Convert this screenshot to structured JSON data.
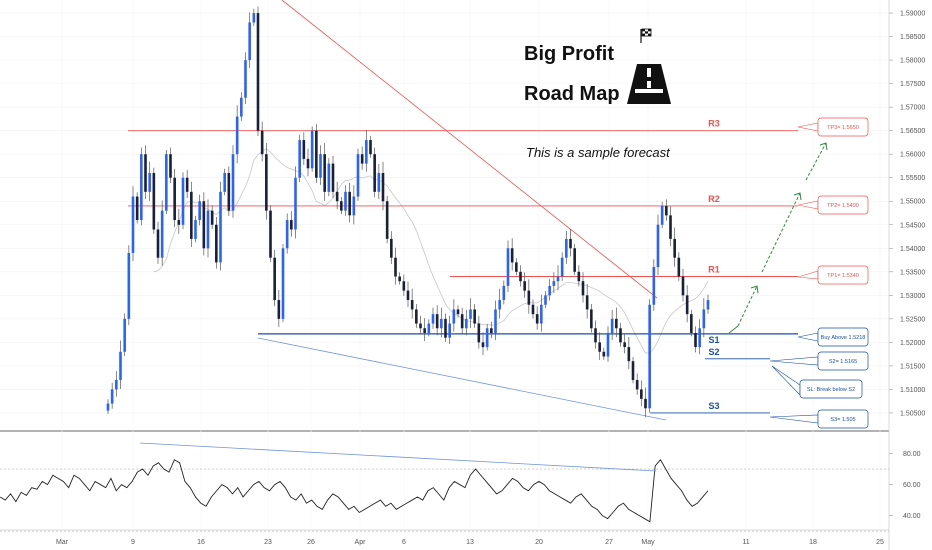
{
  "header": {
    "title_line1": "Big Profit",
    "title_line2": "Road Map",
    "subtitle": "This is a sample forecast",
    "flag_icon": "checkered-flag-icon",
    "road_icon": "road-icon"
  },
  "colors": {
    "up": "#2962ff",
    "down": "#ef5350",
    "candle_body": "#1a1f3a",
    "resistance": "#ef5350",
    "support": "#1a4fa8",
    "projection": "#2e8b3a",
    "ma": "#c8c8c8",
    "oscillator": "#222222"
  },
  "chart_data": {
    "type": "candlestick",
    "price_axis": {
      "ticks": [
        "1.59000",
        "1.58500",
        "1.58000",
        "1.57500",
        "1.57000",
        "1.56500",
        "1.56000",
        "1.55500",
        "1.55000",
        "1.54500",
        "1.54000",
        "1.53500",
        "1.53000",
        "1.52500",
        "1.52000",
        "1.51500",
        "1.51000",
        "1.50500"
      ],
      "ylim": [
        1.5035,
        1.5915
      ]
    },
    "oscillator_axis": {
      "ticks": [
        "80.00",
        "60.00",
        "40.00"
      ],
      "ylim": [
        32,
        90
      ],
      "bands": [
        70,
        30
      ]
    },
    "x_ticks": [
      "Mar",
      "9",
      "16",
      "23",
      "26",
      "Apr",
      "6",
      "13",
      "20",
      "27",
      "May",
      "11",
      "18",
      "25"
    ],
    "levels": [
      {
        "name": "R3",
        "price": 1.565,
        "color": "resistance",
        "box": "TP3= 1.5650"
      },
      {
        "name": "R2",
        "price": 1.549,
        "color": "resistance",
        "box": "TP2= 1.5490"
      },
      {
        "name": "R1",
        "price": 1.534,
        "color": "resistance",
        "box": "TP1= 1.5340"
      },
      {
        "name": "S1",
        "price": 1.5218,
        "color": "support",
        "box": "Buy Above 1.5218"
      },
      {
        "name": "S2",
        "price": 1.5165,
        "color": "support",
        "box": "S2= 1.5165"
      },
      {
        "name": "S3",
        "price": 1.505,
        "color": "support",
        "box": "S3= 1.505"
      }
    ],
    "annotation_sl": "SL: Break below S2",
    "candles_price_path": [
      1.507,
      1.51,
      1.512,
      1.518,
      1.525,
      1.539,
      1.551,
      1.546,
      1.56,
      1.552,
      1.556,
      1.544,
      1.538,
      1.548,
      1.56,
      1.555,
      1.546,
      1.545,
      1.555,
      1.552,
      1.542,
      1.546,
      1.55,
      1.54,
      1.548,
      1.545,
      1.537,
      1.552,
      1.556,
      1.548,
      1.56,
      1.568,
      1.572,
      1.58,
      1.588,
      1.59,
      1.565,
      1.56,
      1.548,
      1.538,
      1.529,
      1.525,
      1.54,
      1.546,
      1.544,
      1.555,
      1.563,
      1.559,
      1.557,
      1.565,
      1.555,
      1.56,
      1.552,
      1.558,
      1.552,
      1.55,
      1.548,
      1.552,
      1.547,
      1.551,
      1.56,
      1.558,
      1.563,
      1.56,
      1.552,
      1.556,
      1.55,
      1.542,
      1.538,
      1.534,
      1.533,
      1.531,
      1.529,
      1.527,
      1.524,
      1.523,
      1.522,
      1.524,
      1.526,
      1.523,
      1.525,
      1.521,
      1.524,
      1.527,
      1.526,
      1.523,
      1.525,
      1.527,
      1.524,
      1.52,
      1.519,
      1.523,
      1.522,
      1.527,
      1.529,
      1.532,
      1.54,
      1.537,
      1.535,
      1.533,
      1.531,
      1.528,
      1.526,
      1.524,
      1.528,
      1.53,
      1.532,
      1.533,
      1.534,
      1.538,
      1.542,
      1.54,
      1.535,
      1.533,
      1.53,
      1.527,
      1.523,
      1.52,
      1.518,
      1.517,
      1.522,
      1.525,
      1.523,
      1.52,
      1.519,
      1.516,
      1.512,
      1.51,
      1.508,
      1.506,
      1.528,
      1.536,
      1.545,
      1.549,
      1.547,
      1.542,
      1.538,
      1.534,
      1.53,
      1.526,
      1.522,
      1.519,
      1.523,
      1.527,
      1.529
    ],
    "oscillator_path": [
      52,
      50,
      54,
      49,
      55,
      53,
      58,
      57,
      62,
      60,
      66,
      64,
      62,
      58,
      66,
      64,
      60,
      56,
      62,
      60,
      58,
      64,
      56,
      60,
      58,
      62,
      68,
      70,
      66,
      72,
      74,
      70,
      68,
      76,
      74,
      62,
      58,
      52,
      48,
      46,
      52,
      56,
      60,
      58,
      54,
      58,
      52,
      56,
      60,
      62,
      58,
      56,
      60,
      62,
      58,
      52,
      50,
      54,
      48,
      50,
      46,
      44,
      50,
      54,
      52,
      48,
      44,
      46,
      42,
      44,
      46,
      48,
      50,
      46,
      48,
      44,
      46,
      48,
      50,
      52,
      50,
      56,
      58,
      54,
      50,
      58,
      62,
      60,
      58,
      66,
      70,
      66,
      62,
      58,
      54,
      56,
      60,
      64,
      62,
      58,
      56,
      60,
      62,
      60,
      56,
      54,
      52,
      50,
      48,
      52,
      54,
      50,
      46,
      44,
      40,
      38,
      42,
      46,
      48,
      44,
      42,
      40,
      38,
      36,
      72,
      76,
      70,
      64,
      60,
      56,
      50,
      46,
      48,
      52,
      56
    ]
  }
}
